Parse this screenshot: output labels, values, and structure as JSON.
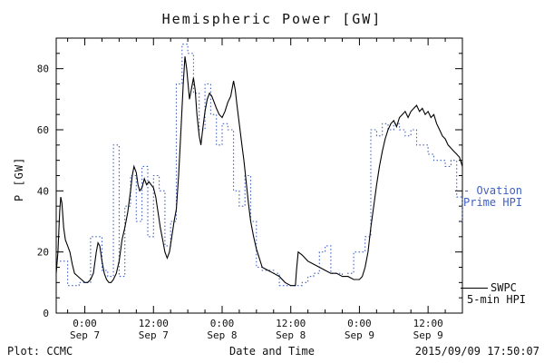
{
  "title": "Hemispheric Power [GW]",
  "footer": {
    "left": "Plot: CCMC",
    "right": "2015/09/09 17:50:07"
  },
  "legend": {
    "ovation": {
      "line1": "- Ovation",
      "line2": "Prime HPI",
      "color": "#4060c0"
    },
    "swpc": {
      "line1": "SWPC",
      "line2": "5-min HPI",
      "color": "#000000"
    }
  },
  "chart_data": {
    "type": "line",
    "title": "Hemispheric Power [GW]",
    "xlabel": "Date and Time",
    "ylabel": "P [GW]",
    "ylim": [
      0,
      90
    ],
    "y_ticks": [
      0,
      20,
      40,
      60,
      80
    ],
    "y_minor_step": 5,
    "xlim": [
      -5,
      66
    ],
    "x_minor_step": 3,
    "x_unit": "hours from 2015-09-07 00:00",
    "x_ticks": [
      {
        "t": 0,
        "line1": "0:00",
        "line2": "Sep 7"
      },
      {
        "t": 12,
        "line1": "12:00",
        "line2": "Sep 7"
      },
      {
        "t": 24,
        "line1": "0:00",
        "line2": "Sep 8"
      },
      {
        "t": 36,
        "line1": "12:00",
        "line2": "Sep 8"
      },
      {
        "t": 48,
        "line1": "0:00",
        "line2": "Sep 9"
      },
      {
        "t": 60,
        "line1": "12:00",
        "line2": "Sep 9"
      }
    ],
    "series": [
      {
        "name": "Ovation Prime HPI",
        "color": "#4060c0",
        "style": "dotted-step",
        "points": [
          [
            -5,
            17
          ],
          [
            -4,
            17
          ],
          [
            -3,
            9
          ],
          [
            -2,
            9
          ],
          [
            -1,
            10
          ],
          [
            0,
            10
          ],
          [
            1,
            25
          ],
          [
            2,
            25
          ],
          [
            3,
            14
          ],
          [
            4,
            12
          ],
          [
            5,
            55
          ],
          [
            6,
            12
          ],
          [
            7,
            35
          ],
          [
            8,
            45
          ],
          [
            9,
            30
          ],
          [
            10,
            48
          ],
          [
            11,
            25
          ],
          [
            12,
            45
          ],
          [
            13,
            40
          ],
          [
            14,
            22
          ],
          [
            15,
            30
          ],
          [
            16,
            75
          ],
          [
            17,
            88
          ],
          [
            18,
            85
          ],
          [
            19,
            72
          ],
          [
            20,
            60
          ],
          [
            21,
            75
          ],
          [
            22,
            65
          ],
          [
            23,
            55
          ],
          [
            24,
            62
          ],
          [
            25,
            60
          ],
          [
            26,
            40
          ],
          [
            27,
            35
          ],
          [
            28,
            45
          ],
          [
            29,
            30
          ],
          [
            30,
            15
          ],
          [
            31,
            14
          ],
          [
            32,
            14
          ],
          [
            33,
            13
          ],
          [
            34,
            9
          ],
          [
            35,
            9
          ],
          [
            36,
            9
          ],
          [
            37,
            9
          ],
          [
            38,
            10
          ],
          [
            39,
            12
          ],
          [
            40,
            13
          ],
          [
            41,
            20
          ],
          [
            42,
            22
          ],
          [
            43,
            13
          ],
          [
            44,
            13
          ],
          [
            45,
            12
          ],
          [
            46,
            13
          ],
          [
            47,
            20
          ],
          [
            48,
            20
          ],
          [
            49,
            25
          ],
          [
            50,
            60
          ],
          [
            51,
            58
          ],
          [
            52,
            62
          ],
          [
            53,
            60
          ],
          [
            54,
            62
          ],
          [
            55,
            60
          ],
          [
            56,
            58
          ],
          [
            57,
            60
          ],
          [
            58,
            55
          ],
          [
            59,
            55
          ],
          [
            60,
            52
          ],
          [
            61,
            50
          ],
          [
            62,
            50
          ],
          [
            63,
            48
          ],
          [
            64,
            50
          ],
          [
            65,
            38
          ],
          [
            66,
            30
          ]
        ]
      },
      {
        "name": "SWPC 5-min HPI",
        "color": "#000000",
        "style": "solid",
        "points": [
          [
            -5,
            13
          ],
          [
            -4.7,
            20
          ],
          [
            -4.4,
            33
          ],
          [
            -4.2,
            38
          ],
          [
            -4,
            36
          ],
          [
            -3.7,
            28
          ],
          [
            -3.4,
            24
          ],
          [
            -3,
            22
          ],
          [
            -2.6,
            20
          ],
          [
            -2.2,
            16
          ],
          [
            -1.8,
            13
          ],
          [
            -1.2,
            12
          ],
          [
            -0.6,
            11
          ],
          [
            0,
            10
          ],
          [
            0.5,
            10
          ],
          [
            1,
            11
          ],
          [
            1.5,
            13
          ],
          [
            2,
            20
          ],
          [
            2.3,
            23
          ],
          [
            2.6,
            22
          ],
          [
            3,
            17
          ],
          [
            3.4,
            13
          ],
          [
            3.8,
            11
          ],
          [
            4.2,
            10
          ],
          [
            4.6,
            10
          ],
          [
            5,
            11
          ],
          [
            5.5,
            13
          ],
          [
            6,
            17
          ],
          [
            6.5,
            24
          ],
          [
            7,
            28
          ],
          [
            7.5,
            33
          ],
          [
            8,
            40
          ],
          [
            8.3,
            45
          ],
          [
            8.6,
            48
          ],
          [
            9,
            46
          ],
          [
            9.3,
            42
          ],
          [
            9.6,
            40
          ],
          [
            10,
            41
          ],
          [
            10.4,
            44
          ],
          [
            10.8,
            42
          ],
          [
            11.2,
            43
          ],
          [
            11.6,
            42
          ],
          [
            12,
            41
          ],
          [
            12.4,
            38
          ],
          [
            12.8,
            33
          ],
          [
            13.2,
            28
          ],
          [
            13.6,
            24
          ],
          [
            14,
            20
          ],
          [
            14.4,
            18
          ],
          [
            14.8,
            20
          ],
          [
            15.2,
            25
          ],
          [
            15.6,
            30
          ],
          [
            16,
            34
          ],
          [
            16.4,
            45
          ],
          [
            16.8,
            60
          ],
          [
            17.2,
            75
          ],
          [
            17.5,
            84
          ],
          [
            17.8,
            80
          ],
          [
            18,
            76
          ],
          [
            18.3,
            70
          ],
          [
            18.6,
            73
          ],
          [
            19,
            77
          ],
          [
            19.3,
            73
          ],
          [
            19.6,
            65
          ],
          [
            20,
            58
          ],
          [
            20.3,
            55
          ],
          [
            20.6,
            60
          ],
          [
            21,
            66
          ],
          [
            21.4,
            70
          ],
          [
            21.8,
            72
          ],
          [
            22.2,
            71
          ],
          [
            22.6,
            69
          ],
          [
            23,
            67
          ],
          [
            23.5,
            65
          ],
          [
            24,
            64
          ],
          [
            24.5,
            66
          ],
          [
            25,
            69
          ],
          [
            25.5,
            71
          ],
          [
            26,
            76
          ],
          [
            26.3,
            73
          ],
          [
            26.6,
            68
          ],
          [
            27,
            62
          ],
          [
            27.4,
            56
          ],
          [
            27.8,
            50
          ],
          [
            28.2,
            43
          ],
          [
            28.6,
            36
          ],
          [
            29,
            30
          ],
          [
            29.5,
            25
          ],
          [
            30,
            21
          ],
          [
            30.5,
            18
          ],
          [
            31,
            15
          ],
          [
            32,
            14
          ],
          [
            33,
            13
          ],
          [
            34,
            12
          ],
          [
            35,
            10
          ],
          [
            36,
            9
          ],
          [
            36.8,
            9
          ],
          [
            37,
            14
          ],
          [
            37.3,
            20
          ],
          [
            38,
            19
          ],
          [
            39,
            17
          ],
          [
            40,
            16
          ],
          [
            41,
            15
          ],
          [
            42,
            14
          ],
          [
            43,
            13
          ],
          [
            44,
            13
          ],
          [
            45,
            12
          ],
          [
            46,
            12
          ],
          [
            47,
            11
          ],
          [
            48,
            11
          ],
          [
            48.5,
            12
          ],
          [
            49,
            15
          ],
          [
            49.5,
            20
          ],
          [
            50,
            28
          ],
          [
            50.5,
            35
          ],
          [
            51,
            42
          ],
          [
            51.5,
            48
          ],
          [
            52,
            53
          ],
          [
            52.5,
            57
          ],
          [
            53,
            60
          ],
          [
            53.5,
            62
          ],
          [
            54,
            63
          ],
          [
            54.5,
            61
          ],
          [
            55,
            64
          ],
          [
            55.5,
            65
          ],
          [
            56,
            66
          ],
          [
            56.5,
            64
          ],
          [
            57,
            66
          ],
          [
            57.5,
            67
          ],
          [
            58,
            68
          ],
          [
            58.5,
            66
          ],
          [
            59,
            67
          ],
          [
            59.5,
            65
          ],
          [
            60,
            66
          ],
          [
            60.5,
            64
          ],
          [
            61,
            65
          ],
          [
            61.5,
            62
          ],
          [
            62,
            60
          ],
          [
            62.5,
            58
          ],
          [
            63,
            57
          ],
          [
            63.5,
            55
          ],
          [
            64,
            54
          ],
          [
            64.5,
            53
          ],
          [
            65,
            52
          ],
          [
            65.5,
            51
          ],
          [
            66,
            48
          ]
        ]
      }
    ]
  }
}
